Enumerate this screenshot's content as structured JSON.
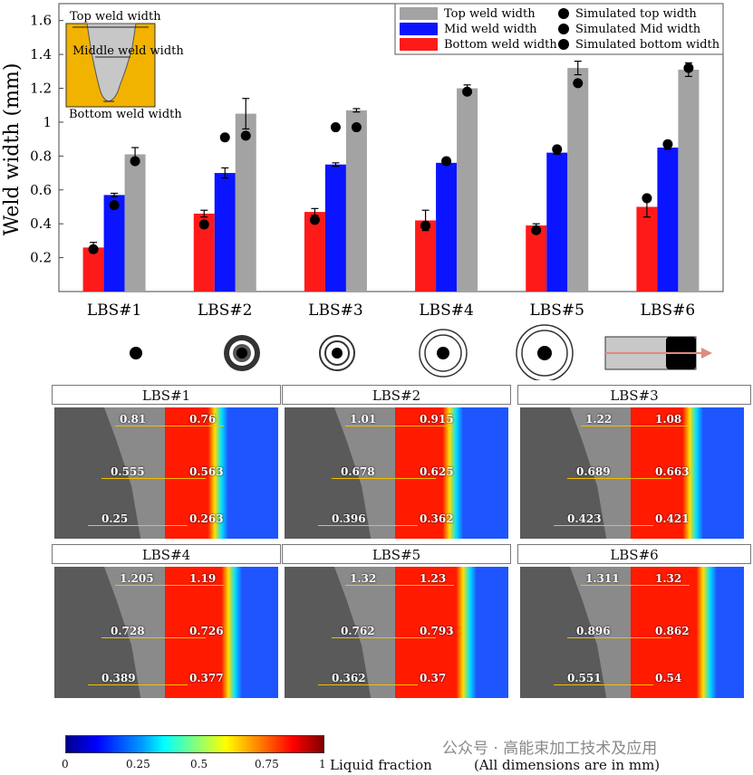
{
  "chart_data": {
    "type": "bar",
    "ylabel": "Weld width (mm)",
    "ylim": [
      0,
      1.7
    ],
    "yticks": [
      "0.2",
      "0.4",
      "0.6",
      "0.8",
      "1",
      "1.2",
      "1.4",
      "1.6"
    ],
    "categories": [
      "LBS#1",
      "LBS#2",
      "LBS#3",
      "LBS#4",
      "LBS#5",
      "LBS#6"
    ],
    "series": [
      {
        "name": "Bottom weld width",
        "color": "#ff1a1a",
        "values": [
          0.26,
          0.46,
          0.47,
          0.42,
          0.39,
          0.5
        ],
        "errors": [
          0.03,
          0.02,
          0.02,
          0.06,
          0.01,
          0.06
        ]
      },
      {
        "name": "Mid weld width",
        "color": "#0a14ff",
        "values": [
          0.57,
          0.7,
          0.75,
          0.76,
          0.82,
          0.85
        ],
        "errors": [
          0.01,
          0.03,
          0.01,
          0.01,
          0.01,
          0.01
        ]
      },
      {
        "name": "Top weld width",
        "color": "#a3a3a3",
        "values": [
          0.81,
          1.05,
          1.07,
          1.2,
          1.32,
          1.31
        ],
        "errors": [
          0.04,
          0.09,
          0.01,
          0.02,
          0.04,
          0.04
        ]
      }
    ],
    "simulated": [
      {
        "name": "Simulated bottom width",
        "values": [
          0.25,
          0.396,
          0.423,
          0.389,
          0.362,
          0.551
        ]
      },
      {
        "name": "Simulated Mid width",
        "values": [
          0.51,
          0.91,
          0.97,
          0.77,
          0.84,
          0.87
        ]
      },
      {
        "name": "Simulated top width",
        "values": [
          0.77,
          0.92,
          0.97,
          1.18,
          1.23,
          1.32
        ]
      }
    ],
    "legend": {
      "position": "top-right",
      "entries": [
        "Top weld width",
        "Simulated top width",
        "Mid weld width",
        "Simulated Mid width",
        "Bottom weld width",
        "Simulated bottom width"
      ]
    },
    "inset_labels": {
      "top": "Top weld width",
      "middle": "Middle weld width",
      "bottom": "Bottom weld width"
    }
  },
  "panels": [
    {
      "title": "LBS#1",
      "exp": [
        "0.81",
        "0.555",
        "0.25"
      ],
      "sim": [
        "0.76",
        "0.563",
        "0.263"
      ]
    },
    {
      "title": "LBS#2",
      "exp": [
        "1.01",
        "0.678",
        "0.396"
      ],
      "sim": [
        "0.915",
        "0.625",
        "0.362"
      ]
    },
    {
      "title": "LBS#3",
      "exp": [
        "1.22",
        "0.689",
        "0.423"
      ],
      "sim": [
        "1.08",
        "0.663",
        "0.421"
      ]
    },
    {
      "title": "LBS#4",
      "exp": [
        "1.205",
        "0.728",
        "0.389"
      ],
      "sim": [
        "1.19",
        "0.726",
        "0.377"
      ]
    },
    {
      "title": "LBS#5",
      "exp": [
        "1.32",
        "0.762",
        "0.362"
      ],
      "sim": [
        "1.23",
        "0.793",
        "0.37"
      ]
    },
    {
      "title": "LBS#6",
      "exp": [
        "1.311",
        "0.896",
        "0.551"
      ],
      "sim": [
        "1.32",
        "0.862",
        "0.54"
      ]
    }
  ],
  "colorbar": {
    "ticks": [
      "0",
      "0.25",
      "0.5",
      "0.75",
      "1"
    ],
    "label": "Liquid fraction"
  },
  "footer": {
    "note": "(All dimensions are in mm)",
    "watermark": "公众号 · 高能束加工技术及应用"
  },
  "colors": {
    "bottom": "#ff1a1a",
    "mid": "#0a14ff",
    "top": "#a3a3a3",
    "sim_red": "#ff1a00",
    "sim_blue": "#1e55ff"
  }
}
